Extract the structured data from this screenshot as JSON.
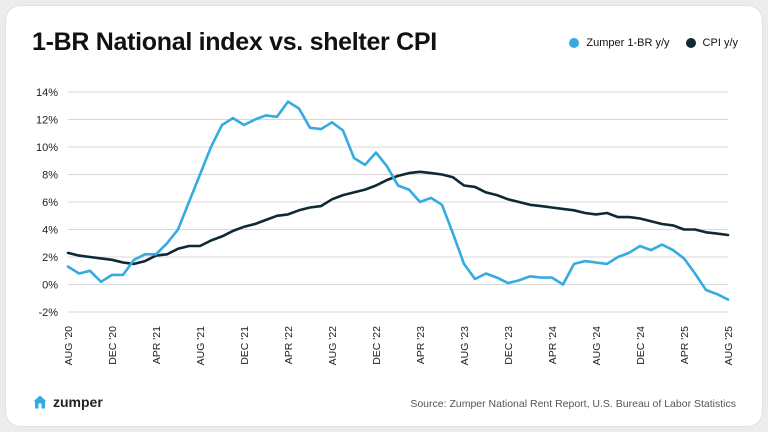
{
  "title": "1-BR National index vs. shelter CPI",
  "source": "Source: Zumper National Rent Report, U.S. Bureau of Labor Statistics",
  "brand": {
    "name": "zumper",
    "icon": "house-icon"
  },
  "colors": {
    "zumper": "#35abe2",
    "cpi": "#0e2a35",
    "grid": "#d8d8d8"
  },
  "chart_data": {
    "type": "line",
    "title": "1-BR National index vs. shelter CPI",
    "xlabel": "",
    "ylabel": "",
    "ylim": [
      -2,
      14
    ],
    "yticks": [
      -2,
      0,
      2,
      4,
      6,
      8,
      10,
      12,
      14
    ],
    "ytick_labels": [
      "-2%",
      "0%",
      "2%",
      "4%",
      "6%",
      "8%",
      "10%",
      "12%",
      "14%"
    ],
    "xtick_labels": [
      "AUG '20",
      "DEC '20",
      "APR '21",
      "AUG '21",
      "DEC '21",
      "APR '22",
      "AUG '22",
      "DEC '22",
      "APR '23",
      "AUG '23",
      "DEC '23",
      "APR '24",
      "AUG '24",
      "DEC '24",
      "APR '25",
      "AUG '25"
    ],
    "grid": "horizontal",
    "legend_position": "top-right",
    "x": [
      "Aug 2020",
      "Sep 2020",
      "Oct 2020",
      "Nov 2020",
      "Dec 2020",
      "Jan 2021",
      "Feb 2021",
      "Mar 2021",
      "Apr 2021",
      "May 2021",
      "Jun 2021",
      "Jul 2021",
      "Aug 2021",
      "Sep 2021",
      "Oct 2021",
      "Nov 2021",
      "Dec 2021",
      "Jan 2022",
      "Feb 2022",
      "Mar 2022",
      "Apr 2022",
      "May 2022",
      "Jun 2022",
      "Jul 2022",
      "Aug 2022",
      "Sep 2022",
      "Oct 2022",
      "Nov 2022",
      "Dec 2022",
      "Jan 2023",
      "Feb 2023",
      "Mar 2023",
      "Apr 2023",
      "May 2023",
      "Jun 2023",
      "Jul 2023",
      "Aug 2023",
      "Sep 2023",
      "Oct 2023",
      "Nov 2023",
      "Dec 2023",
      "Jan 2024",
      "Feb 2024",
      "Mar 2024",
      "Apr 2024",
      "May 2024",
      "Jun 2024",
      "Jul 2024",
      "Aug 2024",
      "Sep 2024",
      "Oct 2024",
      "Nov 2024",
      "Dec 2024",
      "Jan 2025",
      "Feb 2025",
      "Mar 2025",
      "Apr 2025",
      "May 2025",
      "Jun 2025",
      "Jul 2025",
      "Aug 2025"
    ],
    "series": [
      {
        "name": "Zumper 1-BR y/y",
        "color": "#35abe2",
        "values": [
          1.3,
          0.8,
          1.0,
          0.2,
          0.7,
          0.7,
          1.8,
          2.2,
          2.2,
          3.0,
          4.0,
          6.0,
          8.0,
          10.0,
          11.6,
          12.1,
          11.6,
          12.0,
          12.3,
          12.2,
          13.3,
          12.8,
          11.4,
          11.3,
          11.8,
          11.2,
          9.2,
          8.7,
          9.6,
          8.6,
          7.2,
          6.9,
          6.0,
          6.3,
          5.8,
          3.7,
          1.5,
          0.4,
          0.8,
          0.5,
          0.1,
          0.3,
          0.6,
          0.5,
          0.5,
          0.0,
          1.5,
          1.7,
          1.6,
          1.5,
          2.0,
          2.3,
          2.8,
          2.5,
          2.9,
          2.5,
          1.9,
          0.8,
          -0.4,
          -0.7,
          -1.1
        ]
      },
      {
        "name": "CPI y/y",
        "color": "#0e2a35",
        "values": [
          2.3,
          2.1,
          2.0,
          1.9,
          1.8,
          1.6,
          1.5,
          1.7,
          2.1,
          2.2,
          2.6,
          2.8,
          2.8,
          3.2,
          3.5,
          3.9,
          4.2,
          4.4,
          4.7,
          5.0,
          5.1,
          5.4,
          5.6,
          5.7,
          6.2,
          6.5,
          6.7,
          6.9,
          7.2,
          7.6,
          7.9,
          8.1,
          8.2,
          8.1,
          8.0,
          7.8,
          7.2,
          7.1,
          6.7,
          6.5,
          6.2,
          6.0,
          5.8,
          5.7,
          5.6,
          5.5,
          5.4,
          5.2,
          5.1,
          5.2,
          4.9,
          4.9,
          4.8,
          4.6,
          4.4,
          4.3,
          4.0,
          4.0,
          3.8,
          3.7,
          3.6
        ]
      }
    ]
  }
}
